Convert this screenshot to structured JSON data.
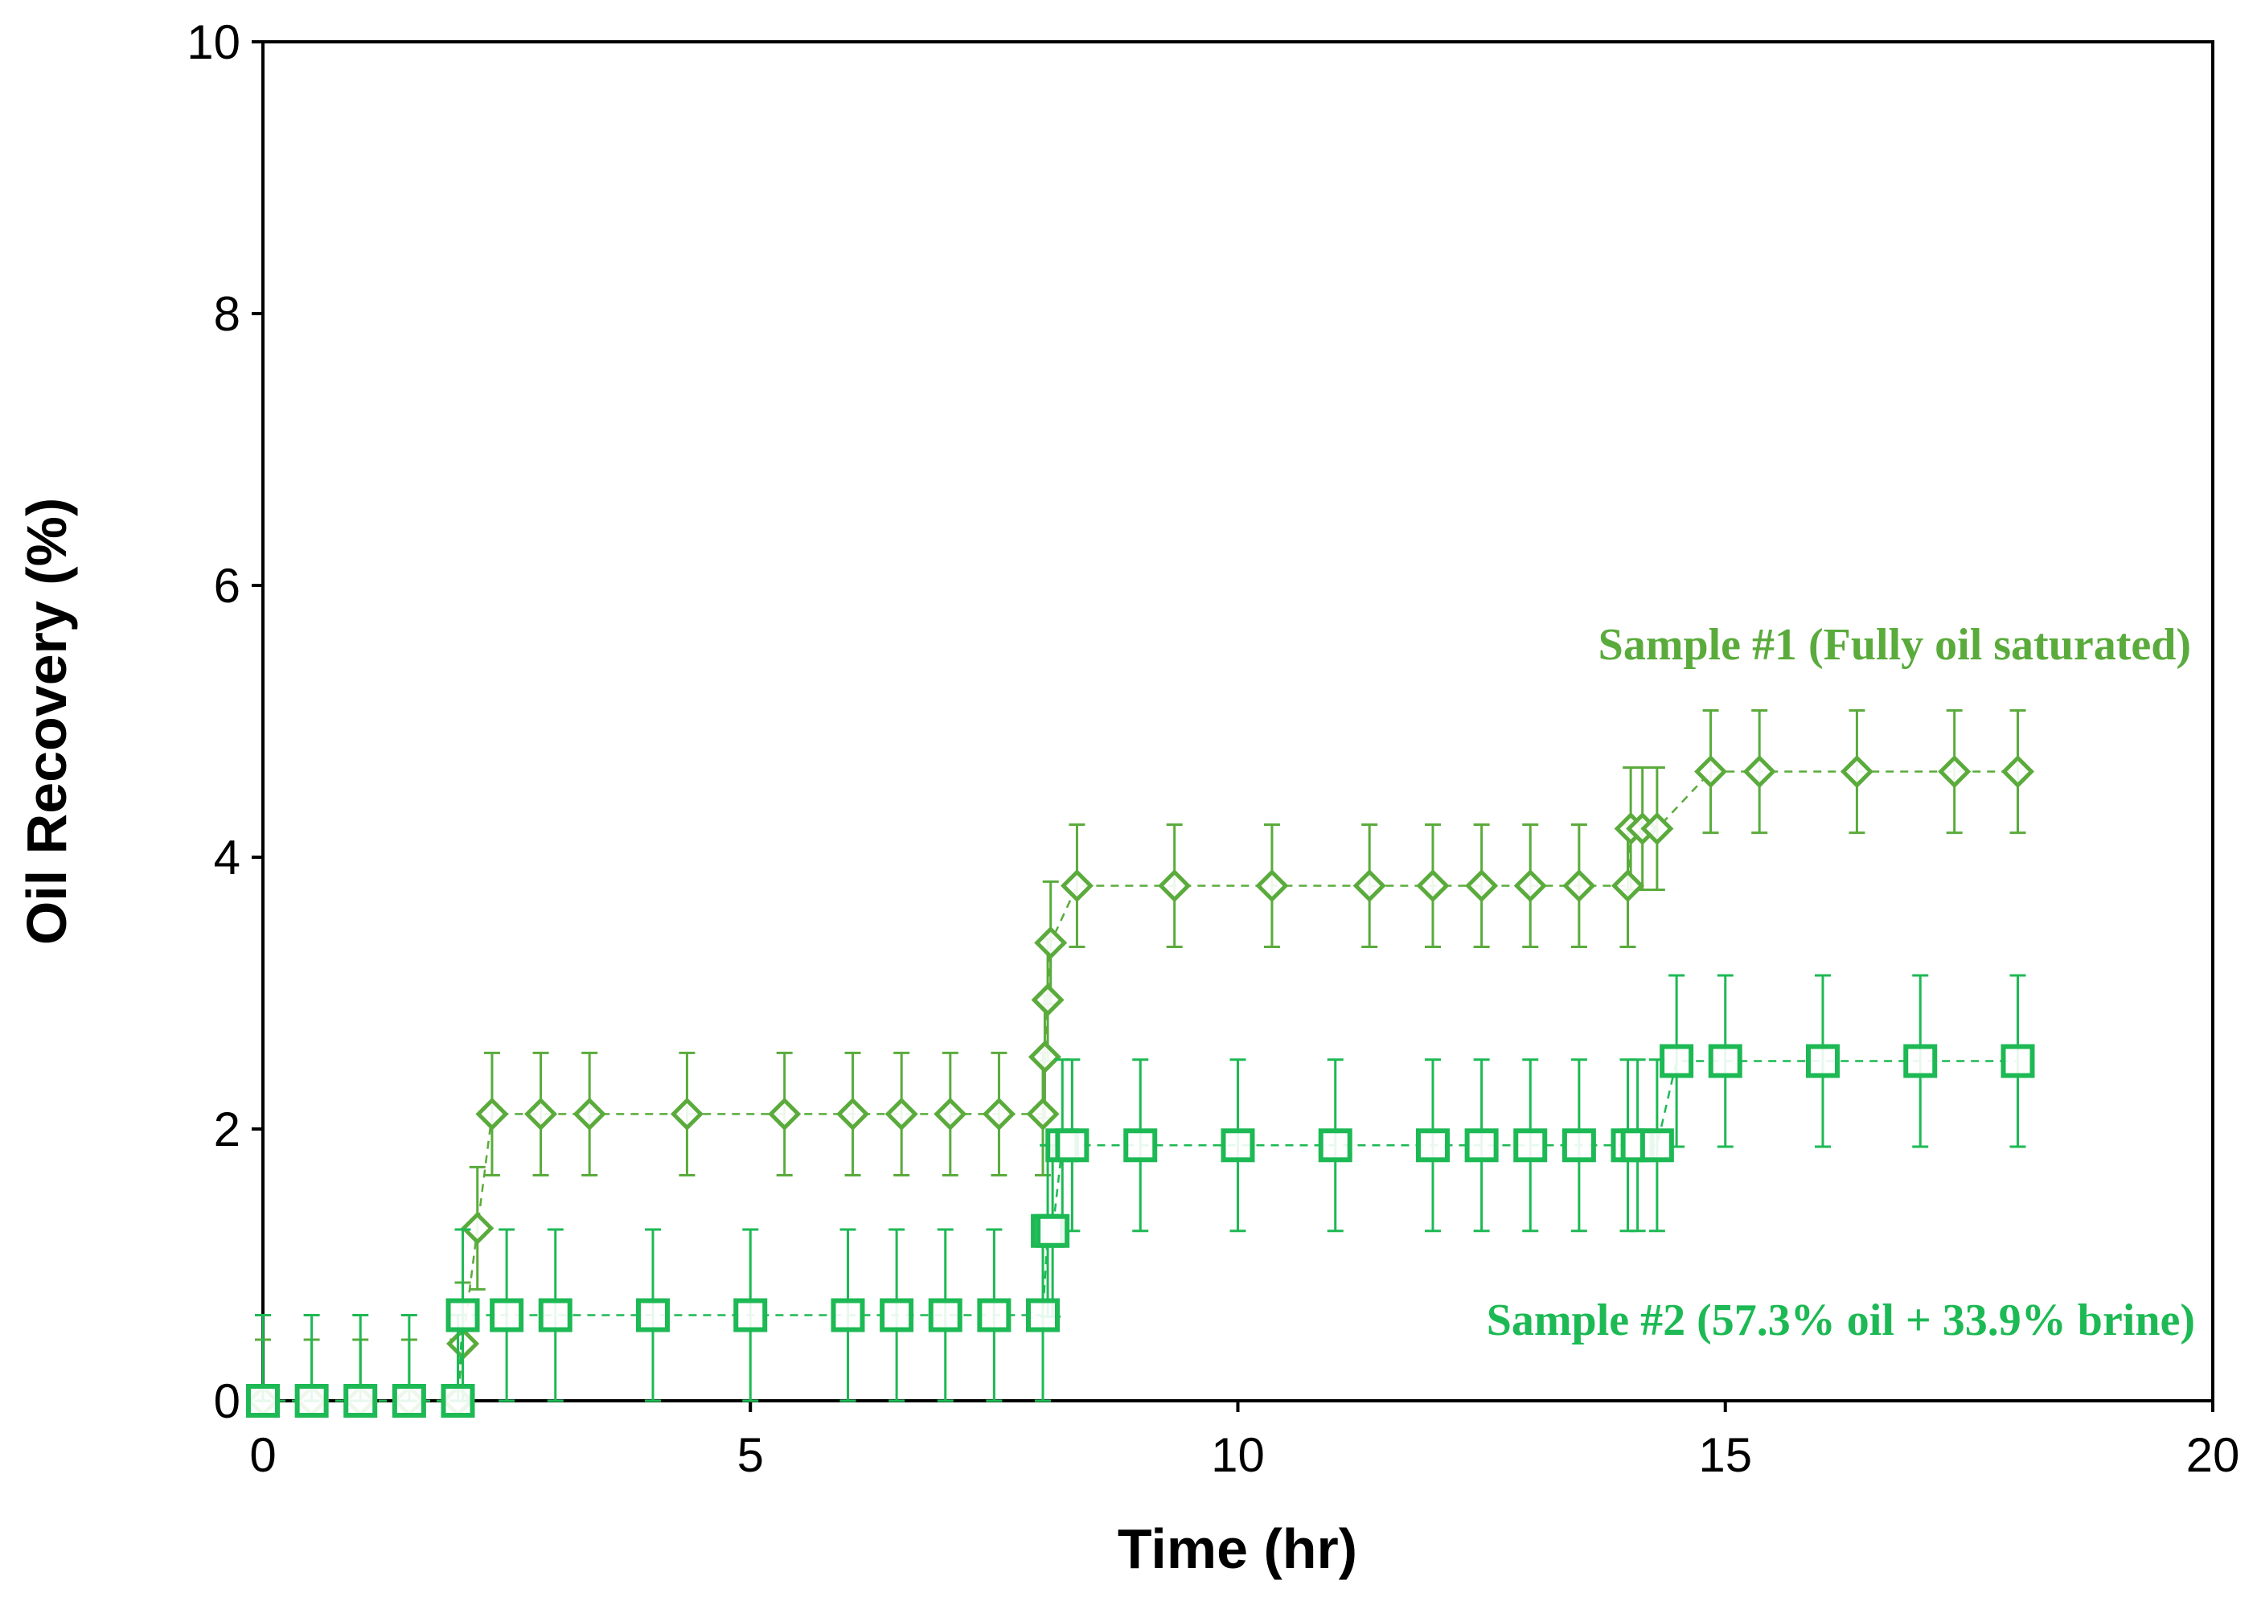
{
  "chart_data": {
    "type": "scatter",
    "title": "",
    "xlabel": "Time (hr)",
    "ylabel": "Oil Recovery (%)",
    "xlim": [
      0,
      20
    ],
    "ylim": [
      0,
      10
    ],
    "xticks": [
      "0",
      "5",
      "10",
      "15",
      "20"
    ],
    "yticks": [
      "0",
      "2",
      "4",
      "6",
      "8",
      "10"
    ],
    "grid": false,
    "series": [
      {
        "name": "Sample #1 (Fully oil saturated)",
        "color": "#5aab3c",
        "marker": "diamond",
        "error": 0.45,
        "x": [
          0,
          0.5,
          1,
          1.5,
          2,
          2.05,
          2.2,
          2.35,
          2.85,
          3.35,
          4.35,
          5.35,
          6.05,
          6.55,
          7.05,
          7.55,
          8.0,
          8.02,
          8.05,
          8.08,
          8.35,
          9.35,
          10.35,
          11.35,
          12.0,
          12.5,
          13.0,
          13.5,
          14.0,
          14.03,
          14.15,
          14.3,
          14.85,
          15.35,
          16.35,
          17.35,
          18.0
        ],
        "y": [
          0,
          0,
          0,
          0,
          0,
          0.42,
          1.27,
          2.11,
          2.11,
          2.11,
          2.11,
          2.11,
          2.11,
          2.11,
          2.11,
          2.11,
          2.11,
          2.53,
          2.95,
          3.37,
          3.79,
          3.79,
          3.79,
          3.79,
          3.79,
          3.79,
          3.79,
          3.79,
          3.79,
          4.21,
          4.21,
          4.21,
          4.63,
          4.63,
          4.63,
          4.63,
          4.63
        ]
      },
      {
        "name": "Sample #2 (57.3% oil + 33.9% brine)",
        "color": "#1db954",
        "marker": "square",
        "error": 0.63,
        "x": [
          0,
          0.5,
          1,
          1.5,
          2,
          2.05,
          2.5,
          3.0,
          4.0,
          5.0,
          6.0,
          6.5,
          7.0,
          7.5,
          8.0,
          8.05,
          8.1,
          8.2,
          8.3,
          9.0,
          10.0,
          11.0,
          12.0,
          12.5,
          13.0,
          13.5,
          14.0,
          14.1,
          14.3,
          14.5,
          15.0,
          16.0,
          17.0,
          18.0
        ],
        "y": [
          0,
          0,
          0,
          0,
          0,
          0.63,
          0.63,
          0.63,
          0.63,
          0.63,
          0.63,
          0.63,
          0.63,
          0.63,
          0.63,
          1.25,
          1.25,
          1.88,
          1.88,
          1.88,
          1.88,
          1.88,
          1.88,
          1.88,
          1.88,
          1.88,
          1.88,
          1.88,
          1.88,
          2.5,
          2.5,
          2.5,
          2.5,
          2.5
        ]
      }
    ]
  }
}
